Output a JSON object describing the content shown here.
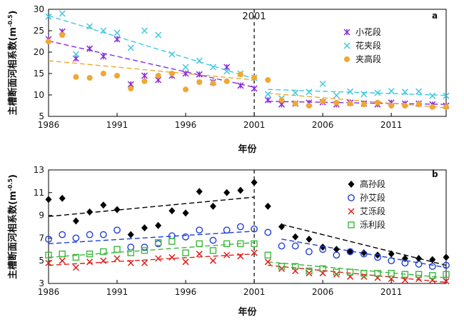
{
  "chart_data": [
    {
      "type": "scatter",
      "panel": "a",
      "xlabel": "年份",
      "ylabel": "主槽断面河相系数(m",
      "ylabel_sup": "-0.5",
      "ylabel_close": ")",
      "xlim": [
        1986,
        2015
      ],
      "ylim": [
        5,
        30
      ],
      "xticks": [
        "1986",
        "1991",
        "1996",
        "2001",
        "2006",
        "2011"
      ],
      "yticks": [
        "5",
        "10",
        "15",
        "20",
        "25",
        "30"
      ],
      "divider_label": "2001",
      "legend_position": "top-right",
      "series": [
        {
          "name": "小花段",
          "marker": "x-star",
          "color": "#8a2be2",
          "x": [
            1986,
            1987,
            1988,
            1989,
            1990,
            1991,
            1992,
            1993,
            1994,
            1995,
            1996,
            1997,
            1998,
            1999,
            2000,
            2001,
            2002,
            2003,
            2004,
            2005,
            2006,
            2007,
            2008,
            2009,
            2010,
            2011,
            2012,
            2013,
            2014,
            2015
          ],
          "y": [
            23.0,
            24.8,
            18.5,
            20.8,
            19.0,
            23.0,
            12.5,
            14.5,
            13.5,
            14.5,
            15.0,
            14.8,
            13.0,
            16.5,
            12.2,
            11.5,
            8.8,
            7.8,
            8.0,
            8.2,
            8.3,
            7.8,
            8.2,
            8.0,
            7.8,
            8.2,
            8.0,
            8.0,
            7.8,
            7.5
          ]
        },
        {
          "name": "花夹段",
          "marker": "x",
          "color": "#3ec9e3",
          "x": [
            1986,
            1987,
            1988,
            1989,
            1990,
            1991,
            1992,
            1993,
            1994,
            1995,
            1996,
            1997,
            1998,
            1999,
            2000,
            2001,
            2002,
            2003,
            2004,
            2005,
            2006,
            2007,
            2008,
            2009,
            2010,
            2011,
            2012,
            2013,
            2014,
            2015
          ],
          "y": [
            28.3,
            29.0,
            19.5,
            26.0,
            25.0,
            24.5,
            21.0,
            25.0,
            24.0,
            19.5,
            16.5,
            18.0,
            16.5,
            15.5,
            15.0,
            14.0,
            10.2,
            9.2,
            10.5,
            10.7,
            12.6,
            9.9,
            10.8,
            10.2,
            10.5,
            10.9,
            10.7,
            10.8,
            9.8,
            9.8
          ]
        },
        {
          "name": "夹高段",
          "marker": "dot",
          "color": "#f0a830",
          "x": [
            1986,
            1987,
            1988,
            1989,
            1990,
            1991,
            1992,
            1993,
            1994,
            1995,
            1996,
            1997,
            1998,
            1999,
            2000,
            2001,
            2002,
            2003,
            2004,
            2005,
            2006,
            2007,
            2008,
            2009,
            2010,
            2011,
            2012,
            2013,
            2014,
            2015
          ],
          "y": [
            22.5,
            24.0,
            14.2,
            14.0,
            15.0,
            14.5,
            11.5,
            13.2,
            14.5,
            15.0,
            11.3,
            13.0,
            12.7,
            13.2,
            14.8,
            14.0,
            13.5,
            8.8,
            8.0,
            7.5,
            8.5,
            8.2,
            8.0,
            7.8,
            8.2,
            7.5,
            7.5,
            7.8,
            7.2,
            7.2
          ]
        }
      ],
      "trendlines": [
        {
          "series": "小花段",
          "color": "#8a2be2",
          "segments": [
            [
              1986,
              22.6,
              2001,
              11.8
            ],
            [
              2002,
              8.5,
              2015,
              7.8
            ]
          ]
        },
        {
          "series": "花夹段",
          "color": "#3ec9e3",
          "segments": [
            [
              1986,
              28.5,
              2001,
              13.8
            ],
            [
              2002,
              11.3,
              2015,
              9.9
            ]
          ]
        },
        {
          "series": "夹高段",
          "color": "#f0a830",
          "segments": [
            [
              1986,
              18.0,
              2001,
              13.5
            ],
            [
              2002,
              10.4,
              2015,
              7.0
            ]
          ]
        }
      ]
    },
    {
      "type": "scatter",
      "panel": "b",
      "xlabel": "年份",
      "ylabel": "主槽断面河相系数(m",
      "ylabel_sup": "-0.5",
      "ylabel_close": ")",
      "xlim": [
        1986,
        2015
      ],
      "ylim": [
        3,
        13
      ],
      "xticks": [
        "1986",
        "1991",
        "1996",
        "2001",
        "2006",
        "2011"
      ],
      "yticks": [
        "3",
        "5",
        "7",
        "9",
        "11",
        "13"
      ],
      "divider_label": "",
      "legend_position": "top-right",
      "series": [
        {
          "name": "高孙段",
          "marker": "diamond",
          "color": "#000000",
          "x": [
            1986,
            1987,
            1988,
            1989,
            1990,
            1991,
            1992,
            1993,
            1994,
            1995,
            1996,
            1997,
            1998,
            1999,
            2000,
            2001,
            2002,
            2003,
            2004,
            2005,
            2006,
            2007,
            2008,
            2009,
            2010,
            2011,
            2012,
            2013,
            2014,
            2015
          ],
          "y": [
            10.4,
            10.5,
            8.5,
            9.3,
            9.9,
            9.5,
            7.3,
            7.9,
            8.1,
            9.4,
            9.2,
            11.1,
            9.8,
            11.0,
            11.2,
            11.9,
            9.8,
            8.0,
            7.1,
            6.9,
            6.2,
            6.0,
            5.8,
            5.7,
            5.5,
            5.6,
            5.2,
            5.2,
            5.1,
            5.3
          ]
        },
        {
          "name": "孙艾段",
          "marker": "circle",
          "color": "#1f3fd6",
          "x": [
            1986,
            1987,
            1988,
            1989,
            1990,
            1991,
            1992,
            1993,
            1994,
            1995,
            1996,
            1997,
            1998,
            1999,
            2000,
            2001,
            2002,
            2003,
            2004,
            2005,
            2006,
            2007,
            2008,
            2009,
            2010,
            2011,
            2012,
            2013,
            2014,
            2015
          ],
          "y": [
            6.9,
            7.3,
            7.0,
            7.3,
            7.3,
            7.7,
            6.2,
            6.2,
            6.5,
            7.2,
            7.1,
            7.7,
            6.8,
            7.7,
            8.0,
            7.8,
            7.5,
            6.3,
            6.3,
            5.8,
            6.0,
            5.5,
            5.8,
            5.6,
            5.3,
            5.0,
            4.8,
            4.7,
            4.5,
            4.6
          ]
        },
        {
          "name": "艾泺段",
          "marker": "x",
          "color": "#e0201c",
          "x": [
            1986,
            1987,
            1988,
            1989,
            1990,
            1991,
            1992,
            1993,
            1994,
            1995,
            1996,
            1997,
            1998,
            1999,
            2000,
            2001,
            2002,
            2003,
            2004,
            2005,
            2006,
            2007,
            2008,
            2009,
            2010,
            2011,
            2012,
            2013,
            2014,
            2015
          ],
          "y": [
            4.8,
            5.0,
            4.4,
            4.9,
            5.0,
            5.2,
            4.8,
            4.8,
            5.2,
            5.3,
            4.9,
            5.6,
            5.0,
            5.5,
            5.4,
            5.7,
            4.9,
            4.3,
            4.1,
            3.9,
            3.9,
            3.8,
            3.6,
            3.6,
            3.5,
            3.4,
            3.3,
            3.4,
            3.3,
            3.2
          ]
        },
        {
          "name": "泺利段",
          "marker": "square",
          "color": "#3cb83c",
          "x": [
            1986,
            1987,
            1988,
            1989,
            1990,
            1991,
            1992,
            1993,
            1994,
            1995,
            1996,
            1997,
            1998,
            1999,
            2000,
            2001,
            2002,
            2003,
            2004,
            2005,
            2006,
            2007,
            2008,
            2009,
            2010,
            2011,
            2012,
            2013,
            2014,
            2015
          ],
          "y": [
            5.5,
            5.6,
            5.3,
            5.6,
            5.8,
            6.0,
            5.7,
            5.9,
            6.6,
            6.7,
            5.7,
            6.5,
            5.9,
            6.5,
            6.5,
            6.5,
            5.5,
            4.5,
            4.5,
            4.1,
            4.3,
            4.0,
            4.0,
            3.9,
            3.9,
            3.9,
            3.8,
            3.8,
            3.7,
            3.8
          ]
        }
      ],
      "trendlines": [
        {
          "series": "高孙段",
          "color": "#000000",
          "segments": [
            [
              1986,
              8.9,
              2001,
              10.6
            ],
            [
              2003,
              8.2,
              2015,
              4.6
            ]
          ]
        },
        {
          "series": "孙艾段",
          "color": "#1f3fd6",
          "segments": [
            [
              1986,
              6.5,
              2001,
              7.6
            ],
            [
              2003,
              6.9,
              2015,
              4.4
            ]
          ]
        },
        {
          "series": "艾泺段",
          "color": "#e0201c",
          "segments": [
            [
              1986,
              4.6,
              2001,
              5.6
            ],
            [
              2002,
              4.6,
              2015,
              3.1
            ]
          ]
        },
        {
          "series": "泺利段",
          "color": "#3cb83c",
          "segments": [
            [
              1986,
              5.3,
              2001,
              6.6
            ],
            [
              2002,
              4.9,
              2015,
              3.5
            ]
          ]
        }
      ]
    }
  ]
}
